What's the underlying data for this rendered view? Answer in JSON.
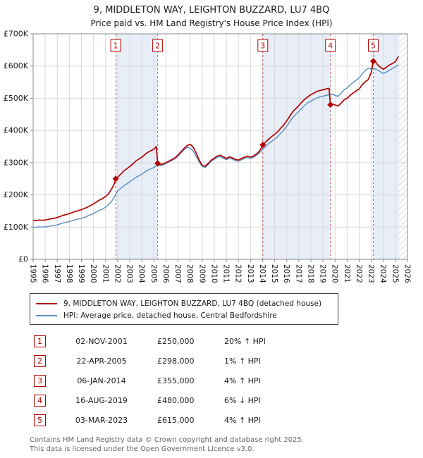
{
  "colors": {
    "property": "#b30000",
    "hpi": "#5b8dbe",
    "band": "#e8eef7",
    "grid": "#d8d8d8",
    "axis": "#8a8a8a",
    "hatch": "#b8b8b8",
    "text": "#1a1a1a",
    "muted": "#666666"
  },
  "chart_data": {
    "type": "line",
    "title": "9, MIDDLETON WAY, LEIGHTON BUZZARD, LU7 4BQ",
    "subtitle": "Price paid vs. HM Land Registry's House Price Index (HPI)",
    "xlim": [
      1995,
      2026
    ],
    "ylim": [
      0,
      700
    ],
    "y_unit": "GBP thousands",
    "yticks": [
      0,
      100,
      200,
      300,
      400,
      500,
      600,
      700
    ],
    "ytick_labels": [
      "£0",
      "£100K",
      "£200K",
      "£300K",
      "£400K",
      "£500K",
      "£600K",
      "£700K"
    ],
    "xticks": [
      1995,
      1996,
      1997,
      1998,
      1999,
      2000,
      2001,
      2002,
      2003,
      2004,
      2005,
      2006,
      2007,
      2008,
      2009,
      2010,
      2011,
      2012,
      2013,
      2014,
      2015,
      2016,
      2017,
      2018,
      2019,
      2020,
      2021,
      2022,
      2023,
      2024,
      2025,
      2026
    ],
    "legend": [
      "9, MIDDLETON WAY, LEIGHTON BUZZARD, LU7 4BQ (detached house)",
      "HPI: Average price, detached house, Central Bedfordshire"
    ],
    "bands": [
      [
        2001.84,
        2005.31
      ],
      [
        2014.02,
        2019.62
      ],
      [
        2023.17,
        2025.3
      ]
    ],
    "future_hatch": [
      2025.3,
      2026
    ],
    "sales": [
      {
        "n": "1",
        "x": 2001.84,
        "y": 250
      },
      {
        "n": "2",
        "x": 2005.31,
        "y": 298
      },
      {
        "n": "3",
        "x": 2014.02,
        "y": 355
      },
      {
        "n": "4",
        "x": 2019.62,
        "y": 480
      },
      {
        "n": "5",
        "x": 2023.17,
        "y": 615
      }
    ],
    "series": [
      {
        "name": "hpi_average",
        "color_key": "hpi",
        "width": 1.4,
        "points": [
          [
            1995.0,
            100
          ],
          [
            1995.25,
            99
          ],
          [
            1995.5,
            101
          ],
          [
            1995.75,
            100
          ],
          [
            1996.0,
            101
          ],
          [
            1996.25,
            102
          ],
          [
            1996.5,
            104
          ],
          [
            1996.75,
            105
          ],
          [
            1997.0,
            107
          ],
          [
            1997.25,
            110
          ],
          [
            1997.5,
            113
          ],
          [
            1997.75,
            115
          ],
          [
            1998.0,
            117
          ],
          [
            1998.25,
            120
          ],
          [
            1998.5,
            123
          ],
          [
            1998.75,
            125
          ],
          [
            1999.0,
            127
          ],
          [
            1999.25,
            130
          ],
          [
            1999.5,
            134
          ],
          [
            1999.75,
            138
          ],
          [
            2000.0,
            142
          ],
          [
            2000.25,
            147
          ],
          [
            2000.5,
            152
          ],
          [
            2000.75,
            156
          ],
          [
            2001.0,
            162
          ],
          [
            2001.25,
            170
          ],
          [
            2001.5,
            180
          ],
          [
            2001.75,
            195
          ],
          [
            2002.0,
            212
          ],
          [
            2002.25,
            220
          ],
          [
            2002.5,
            228
          ],
          [
            2002.75,
            234
          ],
          [
            2003.0,
            240
          ],
          [
            2003.25,
            247
          ],
          [
            2003.5,
            254
          ],
          [
            2003.75,
            259
          ],
          [
            2004.0,
            264
          ],
          [
            2004.25,
            271
          ],
          [
            2004.5,
            277
          ],
          [
            2004.75,
            281
          ],
          [
            2005.0,
            285
          ],
          [
            2005.25,
            292
          ],
          [
            2005.5,
            291
          ],
          [
            2005.75,
            293
          ],
          [
            2006.0,
            297
          ],
          [
            2006.25,
            302
          ],
          [
            2006.5,
            307
          ],
          [
            2006.75,
            312
          ],
          [
            2007.0,
            320
          ],
          [
            2007.25,
            330
          ],
          [
            2007.5,
            340
          ],
          [
            2007.75,
            348
          ],
          [
            2008.0,
            345
          ],
          [
            2008.25,
            336
          ],
          [
            2008.5,
            320
          ],
          [
            2008.75,
            302
          ],
          [
            2009.0,
            288
          ],
          [
            2009.25,
            285
          ],
          [
            2009.5,
            294
          ],
          [
            2009.75,
            304
          ],
          [
            2010.0,
            310
          ],
          [
            2010.25,
            317
          ],
          [
            2010.5,
            319
          ],
          [
            2010.75,
            314
          ],
          [
            2011.0,
            309
          ],
          [
            2011.25,
            314
          ],
          [
            2011.5,
            311
          ],
          [
            2011.75,
            306
          ],
          [
            2012.0,
            304
          ],
          [
            2012.25,
            309
          ],
          [
            2012.5,
            313
          ],
          [
            2012.75,
            316
          ],
          [
            2013.0,
            313
          ],
          [
            2013.25,
            317
          ],
          [
            2013.5,
            323
          ],
          [
            2013.75,
            331
          ],
          [
            2014.0,
            341
          ],
          [
            2014.25,
            350
          ],
          [
            2014.5,
            359
          ],
          [
            2014.75,
            366
          ],
          [
            2015.0,
            373
          ],
          [
            2015.25,
            381
          ],
          [
            2015.5,
            391
          ],
          [
            2015.75,
            401
          ],
          [
            2016.0,
            413
          ],
          [
            2016.25,
            427
          ],
          [
            2016.5,
            440
          ],
          [
            2016.75,
            450
          ],
          [
            2017.0,
            459
          ],
          [
            2017.25,
            469
          ],
          [
            2017.5,
            478
          ],
          [
            2017.75,
            486
          ],
          [
            2018.0,
            491
          ],
          [
            2018.25,
            496
          ],
          [
            2018.5,
            501
          ],
          [
            2018.75,
            504
          ],
          [
            2019.0,
            506
          ],
          [
            2019.25,
            509
          ],
          [
            2019.5,
            511
          ],
          [
            2019.75,
            513
          ],
          [
            2020.0,
            509
          ],
          [
            2020.25,
            506
          ],
          [
            2020.5,
            516
          ],
          [
            2020.75,
            526
          ],
          [
            2021.0,
            532
          ],
          [
            2021.25,
            541
          ],
          [
            2021.5,
            549
          ],
          [
            2021.75,
            556
          ],
          [
            2022.0,
            563
          ],
          [
            2022.25,
            576
          ],
          [
            2022.5,
            586
          ],
          [
            2022.75,
            593
          ],
          [
            2023.0,
            591
          ],
          [
            2023.25,
            592
          ],
          [
            2023.5,
            588
          ],
          [
            2023.75,
            582
          ],
          [
            2024.0,
            577
          ],
          [
            2024.25,
            581
          ],
          [
            2024.5,
            587
          ],
          [
            2024.75,
            592
          ],
          [
            2025.0,
            598
          ],
          [
            2025.25,
            604
          ]
        ]
      },
      {
        "name": "price_paid",
        "color_key": "property",
        "width": 1.7,
        "points": [
          [
            1995.0,
            121
          ],
          [
            1995.25,
            120
          ],
          [
            1995.5,
            122
          ],
          [
            1995.75,
            121
          ],
          [
            1996.0,
            122
          ],
          [
            1996.25,
            124
          ],
          [
            1996.5,
            126
          ],
          [
            1996.75,
            127
          ],
          [
            1997.0,
            130
          ],
          [
            1997.25,
            133
          ],
          [
            1997.5,
            137
          ],
          [
            1997.75,
            139
          ],
          [
            1998.0,
            142
          ],
          [
            1998.25,
            145
          ],
          [
            1998.5,
            149
          ],
          [
            1998.75,
            151
          ],
          [
            1999.0,
            154
          ],
          [
            1999.25,
            158
          ],
          [
            1999.5,
            162
          ],
          [
            1999.75,
            167
          ],
          [
            2000.0,
            172
          ],
          [
            2000.25,
            178
          ],
          [
            2000.5,
            184
          ],
          [
            2000.75,
            189
          ],
          [
            2001.0,
            195
          ],
          [
            2001.25,
            204
          ],
          [
            2001.5,
            218
          ],
          [
            2001.75,
            237
          ],
          [
            2001.84,
            250
          ],
          [
            2002.0,
            255
          ],
          [
            2002.25,
            264
          ],
          [
            2002.5,
            274
          ],
          [
            2002.75,
            281
          ],
          [
            2003.0,
            288
          ],
          [
            2003.25,
            296
          ],
          [
            2003.5,
            305
          ],
          [
            2003.75,
            311
          ],
          [
            2004.0,
            317
          ],
          [
            2004.25,
            325
          ],
          [
            2004.5,
            332
          ],
          [
            2004.75,
            337
          ],
          [
            2005.0,
            342
          ],
          [
            2005.2,
            350
          ],
          [
            2005.31,
            298
          ],
          [
            2005.5,
            294
          ],
          [
            2005.75,
            296
          ],
          [
            2006.0,
            300
          ],
          [
            2006.25,
            305
          ],
          [
            2006.5,
            310
          ],
          [
            2006.75,
            315
          ],
          [
            2007.0,
            324
          ],
          [
            2007.25,
            334
          ],
          [
            2007.5,
            344
          ],
          [
            2007.75,
            353
          ],
          [
            2008.0,
            357
          ],
          [
            2008.25,
            348
          ],
          [
            2008.5,
            330
          ],
          [
            2008.75,
            308
          ],
          [
            2009.0,
            292
          ],
          [
            2009.25,
            289
          ],
          [
            2009.5,
            298
          ],
          [
            2009.75,
            308
          ],
          [
            2010.0,
            314
          ],
          [
            2010.25,
            321
          ],
          [
            2010.5,
            323
          ],
          [
            2010.75,
            318
          ],
          [
            2011.0,
            313
          ],
          [
            2011.25,
            318
          ],
          [
            2011.5,
            315
          ],
          [
            2011.75,
            310
          ],
          [
            2012.0,
            308
          ],
          [
            2012.25,
            313
          ],
          [
            2012.5,
            317
          ],
          [
            2012.75,
            320
          ],
          [
            2013.0,
            317
          ],
          [
            2013.25,
            321
          ],
          [
            2013.5,
            327
          ],
          [
            2013.75,
            336
          ],
          [
            2014.02,
            355
          ],
          [
            2014.25,
            364
          ],
          [
            2014.5,
            373
          ],
          [
            2014.75,
            381
          ],
          [
            2015.0,
            388
          ],
          [
            2015.25,
            396
          ],
          [
            2015.5,
            407
          ],
          [
            2015.75,
            417
          ],
          [
            2016.0,
            430
          ],
          [
            2016.25,
            444
          ],
          [
            2016.5,
            458
          ],
          [
            2016.75,
            468
          ],
          [
            2017.0,
            477
          ],
          [
            2017.25,
            488
          ],
          [
            2017.5,
            497
          ],
          [
            2017.75,
            505
          ],
          [
            2018.0,
            511
          ],
          [
            2018.25,
            516
          ],
          [
            2018.5,
            521
          ],
          [
            2018.75,
            524
          ],
          [
            2019.0,
            526
          ],
          [
            2019.25,
            529
          ],
          [
            2019.5,
            531
          ],
          [
            2019.62,
            480
          ],
          [
            2019.75,
            483
          ],
          [
            2020.0,
            479
          ],
          [
            2020.25,
            476
          ],
          [
            2020.5,
            485
          ],
          [
            2020.75,
            495
          ],
          [
            2021.0,
            500
          ],
          [
            2021.25,
            509
          ],
          [
            2021.5,
            516
          ],
          [
            2021.75,
            523
          ],
          [
            2022.0,
            529
          ],
          [
            2022.25,
            542
          ],
          [
            2022.5,
            551
          ],
          [
            2022.75,
            558
          ],
          [
            2023.0,
            580
          ],
          [
            2023.17,
            615
          ],
          [
            2023.25,
            618
          ],
          [
            2023.5,
            605
          ],
          [
            2023.75,
            596
          ],
          [
            2024.0,
            590
          ],
          [
            2024.25,
            596
          ],
          [
            2024.5,
            603
          ],
          [
            2024.75,
            608
          ],
          [
            2025.0,
            614
          ],
          [
            2025.25,
            630
          ]
        ]
      }
    ]
  },
  "transactions": [
    {
      "num": "1",
      "date": "02-NOV-2001",
      "price": "£250,000",
      "hpi": "20% ↑ HPI"
    },
    {
      "num": "2",
      "date": "22-APR-2005",
      "price": "£298,000",
      "hpi": "1% ↑ HPI"
    },
    {
      "num": "3",
      "date": "06-JAN-2014",
      "price": "£355,000",
      "hpi": "4% ↑ HPI"
    },
    {
      "num": "4",
      "date": "16-AUG-2019",
      "price": "£480,000",
      "hpi": "6% ↓ HPI"
    },
    {
      "num": "5",
      "date": "03-MAR-2023",
      "price": "£615,000",
      "hpi": "4% ↑ HPI"
    }
  ],
  "footer": {
    "line1": "Contains HM Land Registry data © Crown copyright and database right 2025.",
    "line2": "This data is licensed under the Open Government Licence v3.0."
  }
}
